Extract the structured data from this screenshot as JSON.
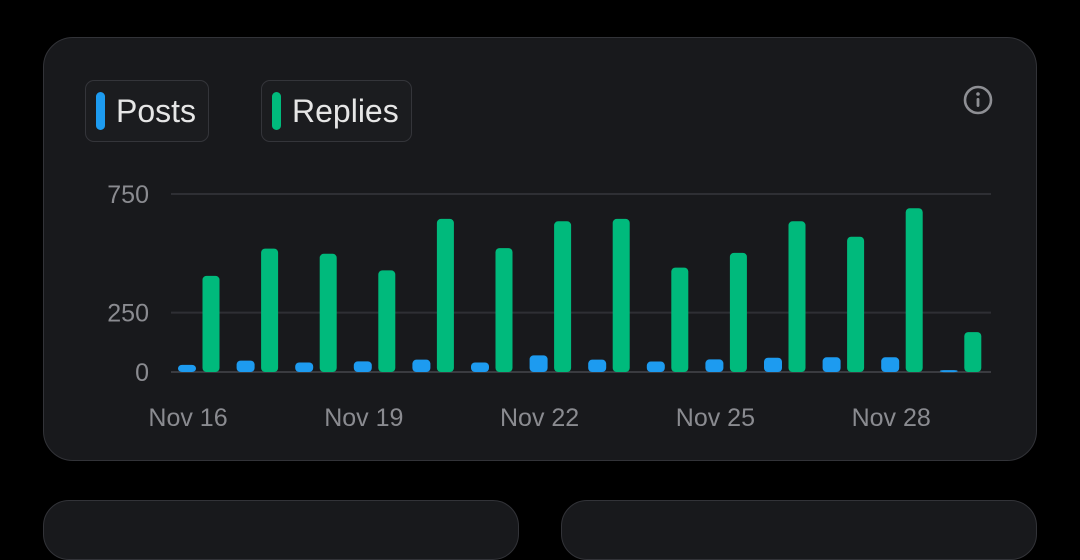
{
  "legend": {
    "posts_label": "Posts",
    "replies_label": "Replies"
  },
  "colors": {
    "posts": "#1d9bf0",
    "replies": "#00ba7c",
    "grid": "#2e2f34",
    "axis": "#3a3b40"
  },
  "info_icon": "info-icon",
  "chart_data": {
    "type": "bar",
    "categories": [
      "Nov 16",
      "Nov 17",
      "Nov 18",
      "Nov 19",
      "Nov 20",
      "Nov 21",
      "Nov 22",
      "Nov 23",
      "Nov 24",
      "Nov 25",
      "Nov 26",
      "Nov 27",
      "Nov 28",
      "Nov 29"
    ],
    "x_tick_labels": [
      "Nov 16",
      "Nov 19",
      "Nov 22",
      "Nov 25",
      "Nov 28"
    ],
    "series": [
      {
        "name": "Posts",
        "values": [
          30,
          48,
          40,
          45,
          52,
          40,
          70,
          52,
          44,
          53,
          60,
          62,
          62,
          8
        ]
      },
      {
        "name": "Replies",
        "values": [
          405,
          520,
          498,
          428,
          645,
          522,
          635,
          645,
          440,
          502,
          635,
          570,
          690,
          168
        ]
      }
    ],
    "y_ticks": [
      "0",
      "250",
      "750"
    ],
    "ylim": [
      0,
      750
    ],
    "grid": true,
    "legend_position": "top-left"
  }
}
